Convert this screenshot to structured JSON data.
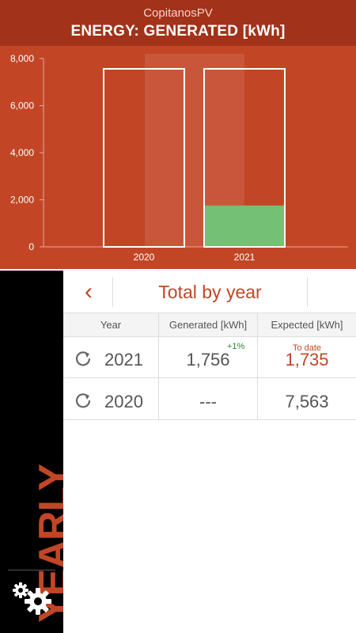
{
  "header": {
    "app_name": "CopitanosPV",
    "title": "ENERGY: GENERATED [kWh]"
  },
  "chart_data": {
    "type": "bar",
    "categories": [
      "2020",
      "2021"
    ],
    "series": [
      {
        "values": [
          0,
          1756
        ]
      }
    ],
    "expected": [
      7563,
      7563
    ],
    "ylim": [
      0,
      8000
    ],
    "yticks": [
      "0",
      "2,000",
      "4,000",
      "6,000",
      "8,000"
    ],
    "yticks_values": [
      0,
      2000,
      4000,
      6000,
      8000
    ],
    "grid": false,
    "highlighted_category": "2020",
    "colors": {
      "background": "#c24626",
      "generated": "#74c075",
      "expected_outline": "#ffffff",
      "highlight": "#d0644a"
    }
  },
  "sidebar": {
    "mode_label": "YEARLY",
    "settings_icon": "gear-icon"
  },
  "nav": {
    "back_icon": "chevron-left-icon",
    "back_glyph": "‹",
    "title": "Total by year"
  },
  "table": {
    "headers": [
      "Year",
      "Generated [kWh]",
      "Expected [kWh]"
    ],
    "rows": [
      {
        "year": "2021",
        "generated": "1,756",
        "delta": "+1%",
        "expected_note": "To date",
        "expected": "1,735"
      },
      {
        "year": "2020",
        "generated": "---",
        "delta": "",
        "expected_note": "",
        "expected": "7,563"
      }
    ]
  }
}
